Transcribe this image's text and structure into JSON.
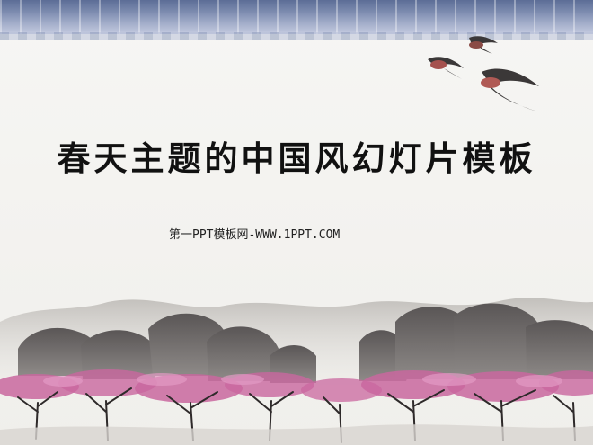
{
  "slide": {
    "title": "春天主题的中国风幻灯片模板",
    "subtitle": "第一PPT模板网-WWW.1PPT.COM"
  },
  "colors": {
    "roof": "#6f7fa8",
    "background": "#f4f3ef",
    "rock": "#4b4848",
    "blossom": "#c9679f",
    "text": "#111111"
  }
}
